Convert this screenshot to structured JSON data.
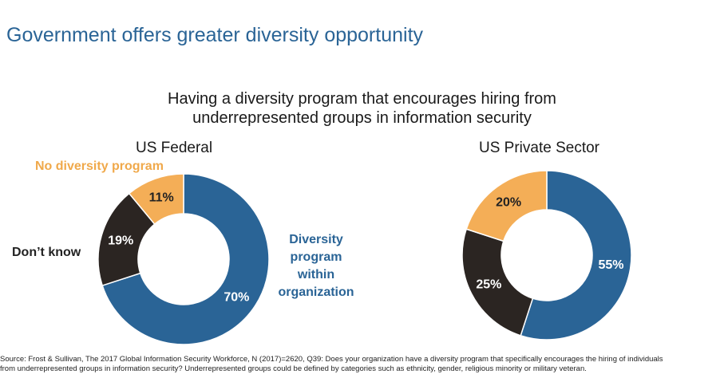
{
  "slide": {
    "title": "Government offers greater diversity opportunity"
  },
  "chart_title": {
    "line1": "Having a diversity program that encourages hiring from",
    "line2": "underrepresented groups in information security"
  },
  "annotations": {
    "no_program": "No diversity program",
    "dont_know": "Don’t know",
    "program": "Diversity program within organization"
  },
  "colors": {
    "program": "#2a6496",
    "dont_know": "#2b2522",
    "no_program": "#f4ae57"
  },
  "chart_data": [
    {
      "type": "pie",
      "title": "US Federal",
      "categories": [
        "Diversity program within organization",
        "Don’t know",
        "No diversity program"
      ],
      "values": [
        70,
        19,
        11
      ],
      "value_labels": [
        "70%",
        "19%",
        "11%"
      ],
      "donut": true
    },
    {
      "type": "pie",
      "title": "US Private Sector",
      "categories": [
        "Diversity program within organization",
        "Don’t know",
        "No diversity program"
      ],
      "values": [
        55,
        25,
        20
      ],
      "value_labels": [
        "55%",
        "25%",
        "20%"
      ],
      "donut": true
    }
  ],
  "source": {
    "line1": "Source: Frost & Sullivan, The 2017 Global Information Security Workforce, N (2017)=2620, Q39: Does your organization have a diversity program that specifically encourages the hiring of individuals",
    "line2": "from underrepresented groups in information security? Underrepresented groups could be defined by categories such as ethnicity, gender, religious minority or military veteran."
  }
}
